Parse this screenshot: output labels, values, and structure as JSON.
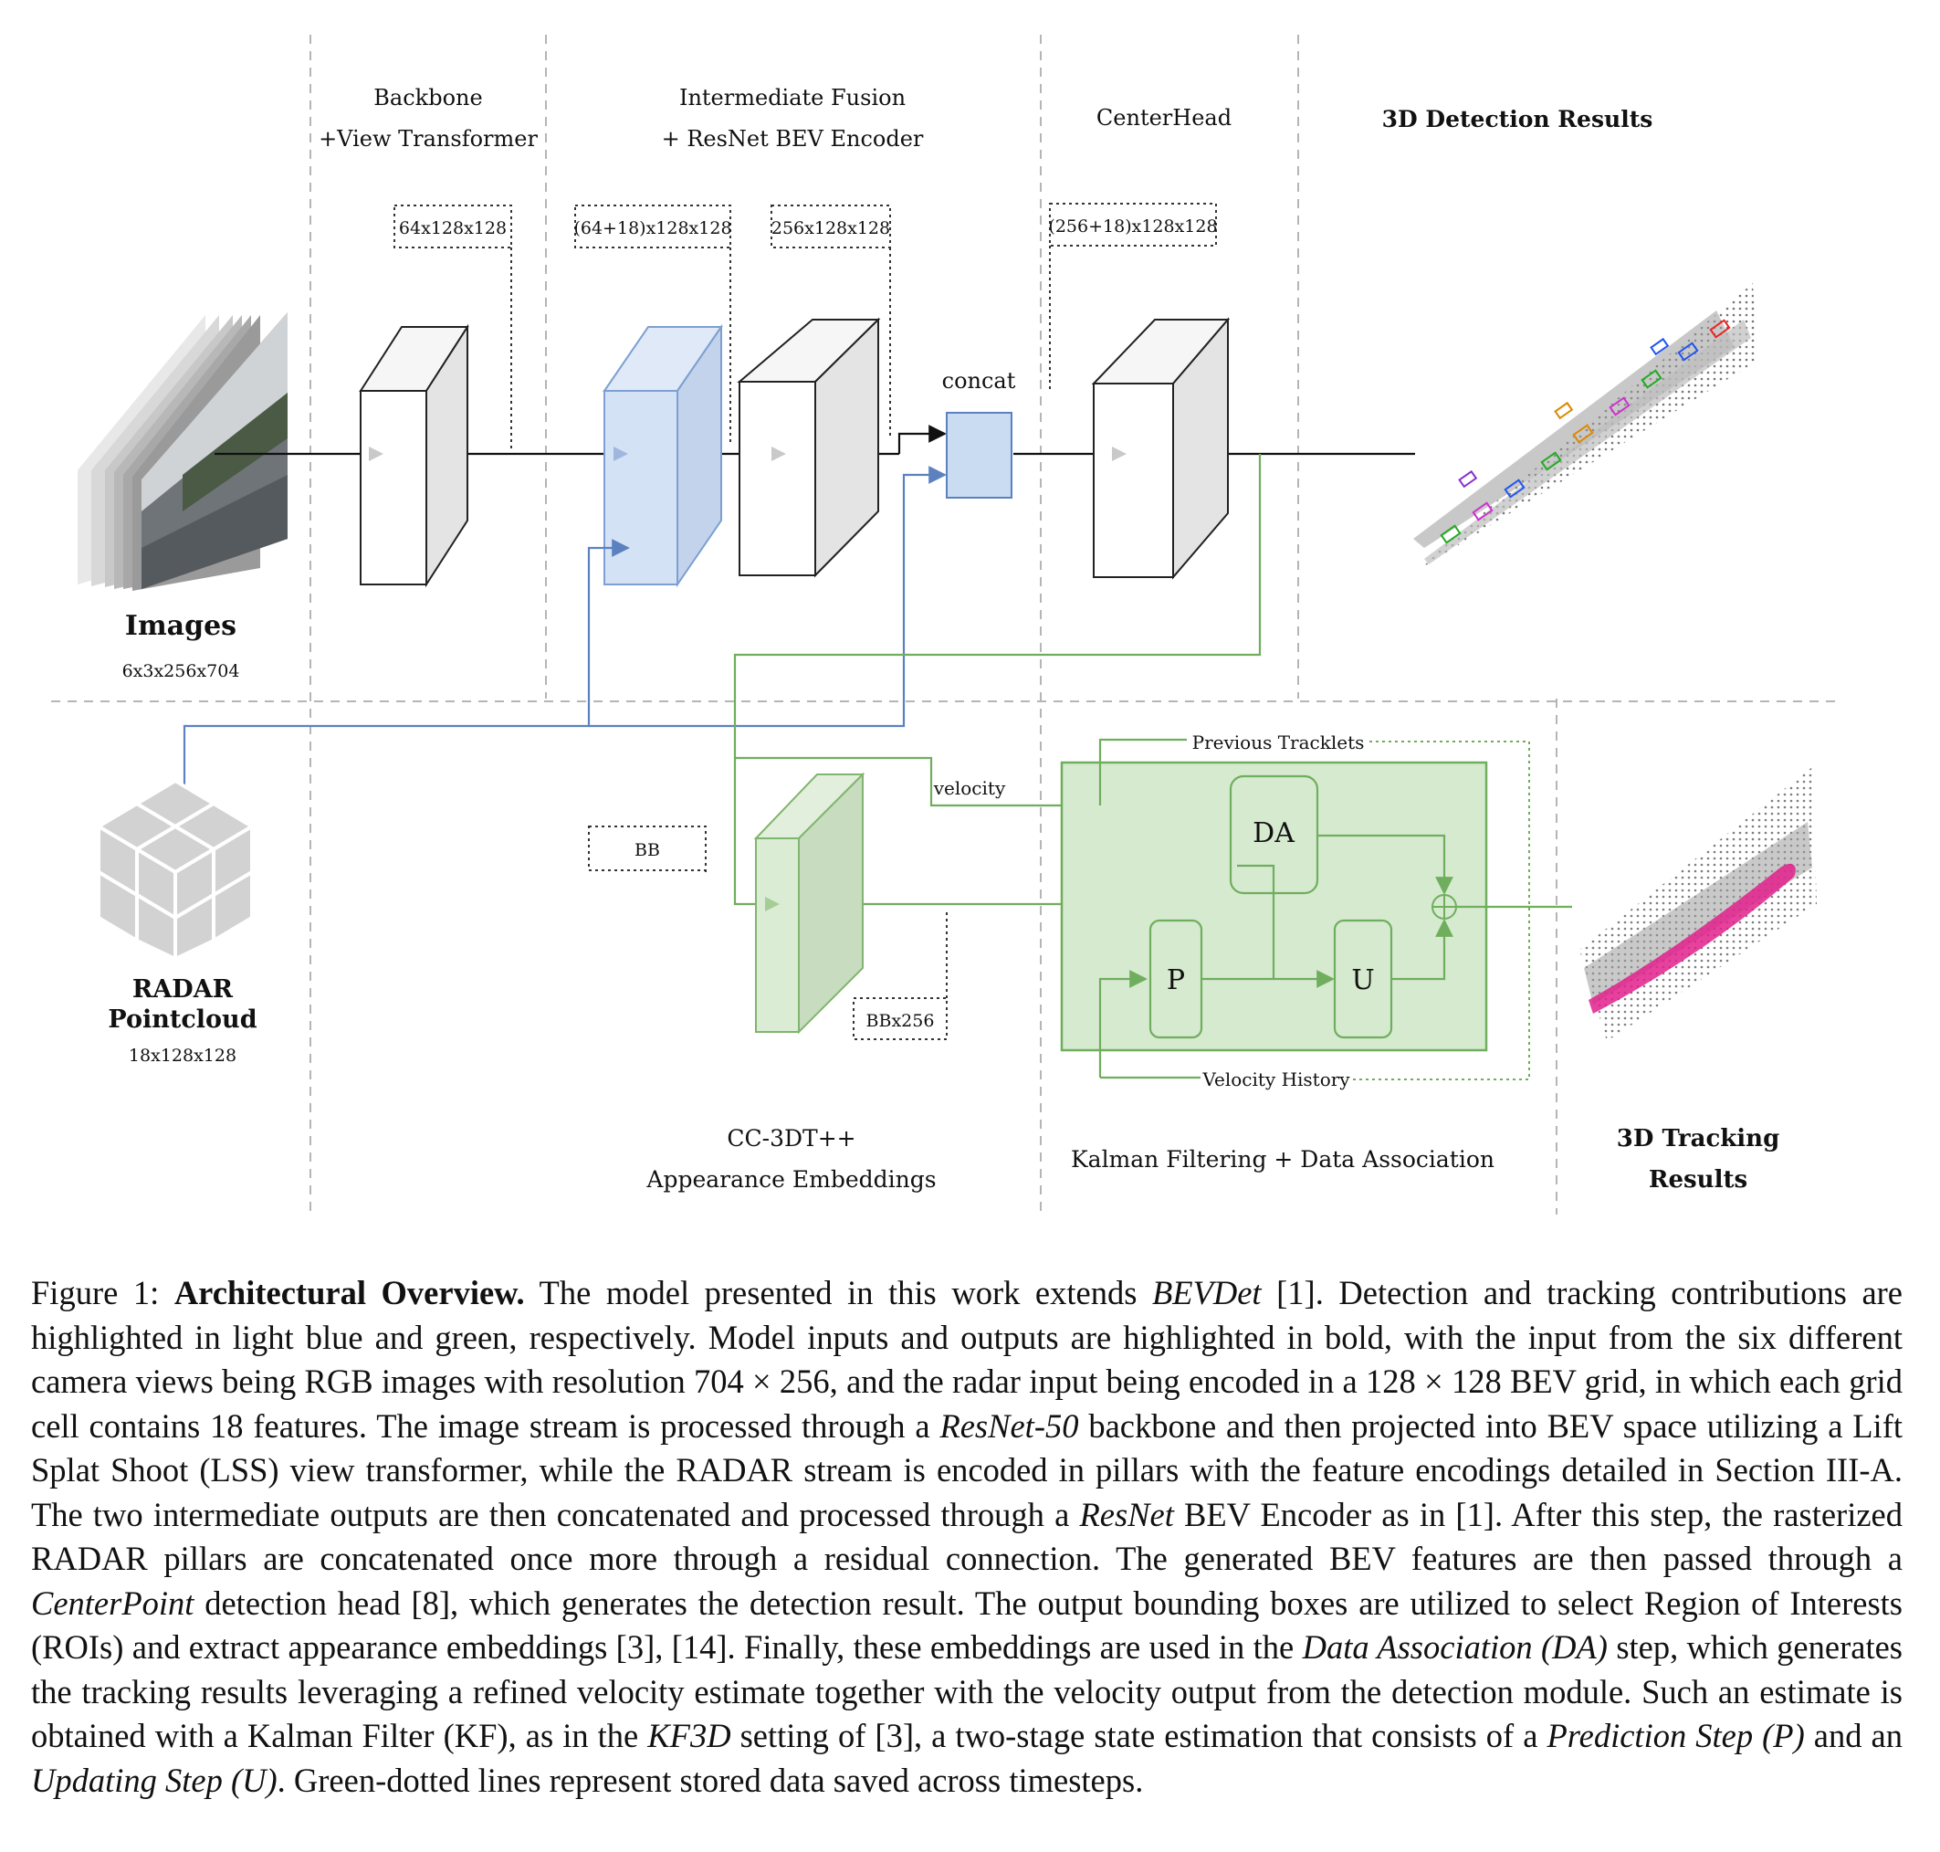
{
  "figure": {
    "stage_labels": {
      "backbone_line1": "Backbone",
      "backbone_line2": "+View Transformer",
      "fusion_line1": "Intermediate Fusion",
      "fusion_line2": "+ ResNet BEV Encoder",
      "centerhead": "CenterHead",
      "det_results": "3D Detection Results",
      "cc3dt_line1": "CC-3DT++",
      "cc3dt_line2": "Appearance Embeddings",
      "kalman": "Kalman Filtering + Data Association",
      "track_results_line1": "3D Tracking",
      "track_results_line2": "Results"
    },
    "dims": {
      "backbone_out": "64x128x128",
      "fusion_in": "(64+18)x128x128",
      "encoder_out": "256x128x128",
      "head_in": "(256+18)x128x128",
      "bb": "BB",
      "bb_emb": "BBx256"
    },
    "inputs": {
      "images_title": "Images",
      "images_dims": "6x3x256x704",
      "radar_title_line1": "RADAR",
      "radar_title_line2": "Pointcloud",
      "radar_dims": "18x128x128"
    },
    "nodes": {
      "concat": "concat",
      "da": "DA",
      "p": "P",
      "u": "U"
    },
    "arrows": {
      "velocity": "velocity",
      "previous_tracklets": "Previous Tracklets",
      "velocity_history": "Velocity History"
    },
    "colors": {
      "detection_blue": "#c9dcf2",
      "detection_blue_stroke": "#5b82bf",
      "tracking_green": "#d6ead0",
      "tracking_green_stroke": "#6fae5d"
    }
  },
  "caption": {
    "label": "Figure 1: ",
    "title": "Architectural Overview.",
    "t1": " The model presented in this work extends ",
    "i1": "BEVDet",
    "t2": " [1]. Detection and tracking contributions are highlighted in light blue and green, respectively. Model inputs and outputs are highlighted in bold, with the input from the six different camera views being RGB images with resolution 704 × 256, and the radar input being encoded in a 128 × 128 BEV grid, in which each grid cell contains 18 features. The image stream is processed through a ",
    "i2": "ResNet-50",
    "t3": " backbone and then projected into BEV space utilizing a Lift Splat Shoot (LSS) view transformer, while the RADAR stream is encoded in pillars with the feature encodings detailed in Section III-A. The two intermediate outputs are then concatenated and processed through a ",
    "i3": "ResNet",
    "t4": " BEV Encoder as in [1]. After this step, the rasterized RADAR pillars are concatenated once more through a residual connection. The generated BEV features are then passed through a ",
    "i4": "CenterPoint",
    "t5": " detection head [8], which generates the detection result. The output bounding boxes are utilized to select Region of Interests (ROIs) and extract appearance embeddings [3], [14]. Finally, these embeddings are used in the ",
    "i5": "Data Association (DA)",
    "t6": " step, which generates the tracking results leveraging a refined velocity estimate together with the velocity output from the detection module. Such an estimate is obtained with a Kalman Filter (KF), as in the ",
    "i6": "KF3D",
    "t7": " setting of [3], a two-stage state estimation that consists of a ",
    "i7": "Prediction Step (P)",
    "t8": " and an ",
    "i8": "Updating Step (U)",
    "t9": ". Green-dotted lines represent stored data saved across timesteps."
  }
}
